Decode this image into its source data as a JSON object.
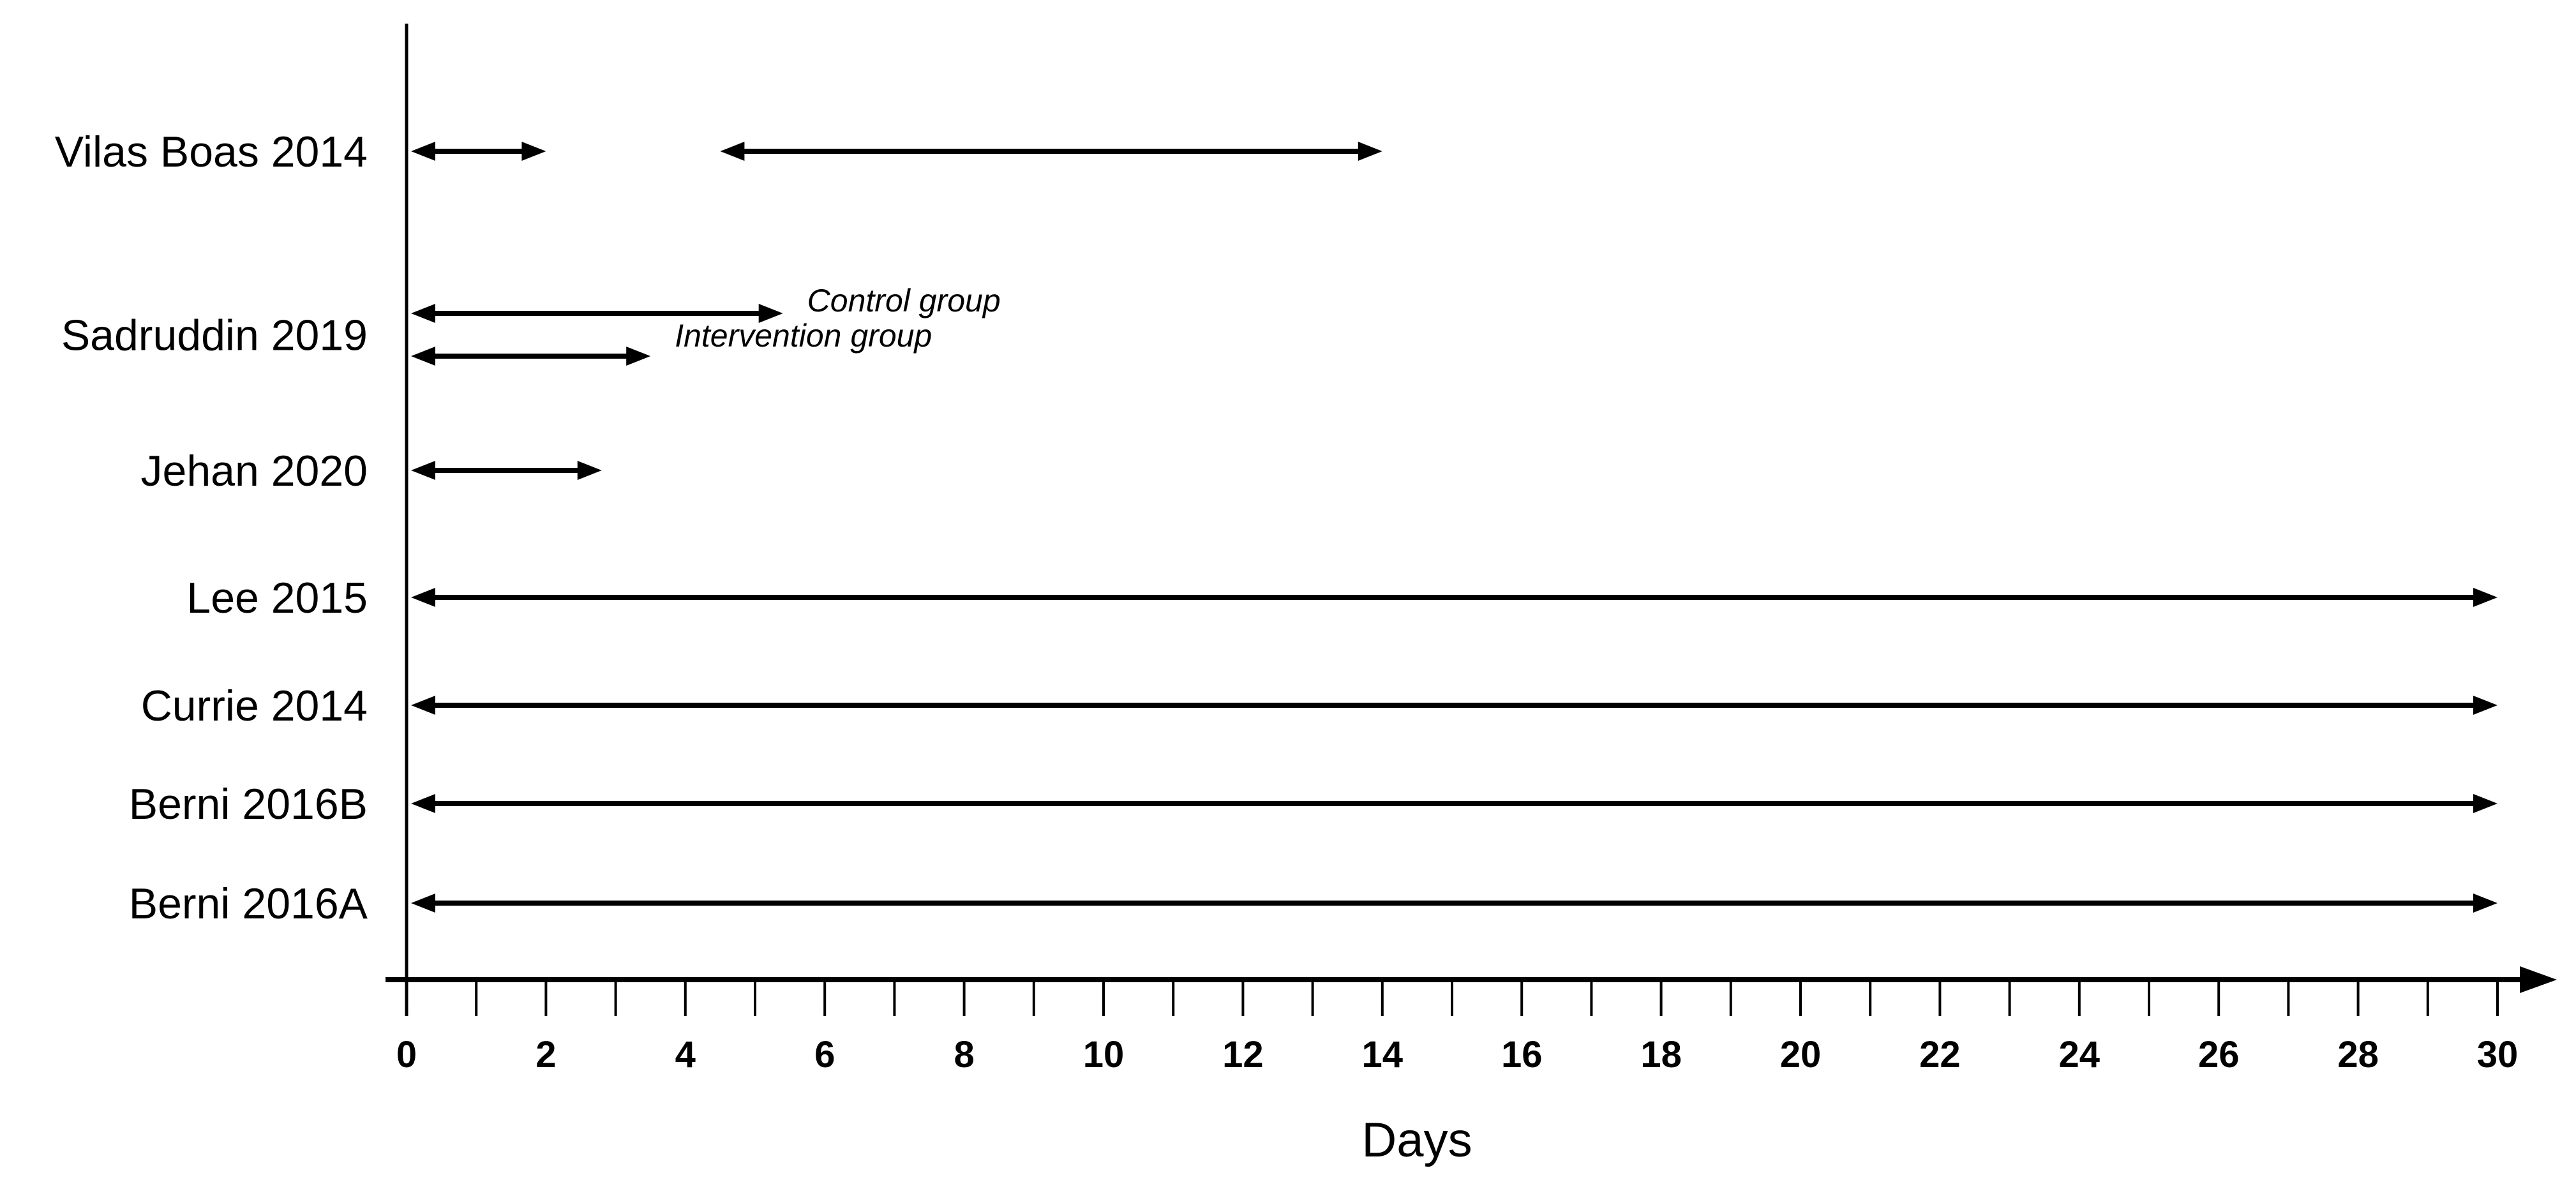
{
  "chart_data": {
    "type": "bar",
    "subtype": "horizontal-range-double-headed-arrows",
    "title": "",
    "xlabel": "Days",
    "xlim": [
      0,
      30
    ],
    "x_major_ticks": [
      0,
      2,
      4,
      6,
      8,
      10,
      12,
      14,
      16,
      18,
      20,
      22,
      24,
      26,
      28,
      30
    ],
    "x_minor_step": 1,
    "grid": false,
    "legend": false,
    "colors": {
      "foreground": "#000000",
      "background": "#ffffff"
    },
    "categories": [
      "Vilas Boas 2014",
      "Sadruddin 2019",
      "Jehan 2020",
      "Lee 2015",
      "Currie 2014",
      "Berni 2016B",
      "Berni 2016A"
    ],
    "series": [
      {
        "name": "Vilas Boas 2014",
        "ranges": [
          {
            "start": 0,
            "end": 2
          },
          {
            "start": 4.5,
            "end": 14
          }
        ]
      },
      {
        "name": "Sadruddin 2019",
        "ranges": [
          {
            "start": 0,
            "end": 5.4,
            "label": "Control group"
          },
          {
            "start": 0,
            "end": 3.5,
            "label": "Intervention group"
          }
        ]
      },
      {
        "name": "Jehan 2020",
        "ranges": [
          {
            "start": 0,
            "end": 2.8
          }
        ]
      },
      {
        "name": "Lee 2015",
        "ranges": [
          {
            "start": 0,
            "end": 30
          }
        ]
      },
      {
        "name": "Currie 2014",
        "ranges": [
          {
            "start": 0,
            "end": 30
          }
        ]
      },
      {
        "name": "Berni 2016B",
        "ranges": [
          {
            "start": 0,
            "end": 30
          }
        ]
      },
      {
        "name": "Berni 2016A",
        "ranges": [
          {
            "start": 0,
            "end": 30
          }
        ]
      }
    ]
  }
}
